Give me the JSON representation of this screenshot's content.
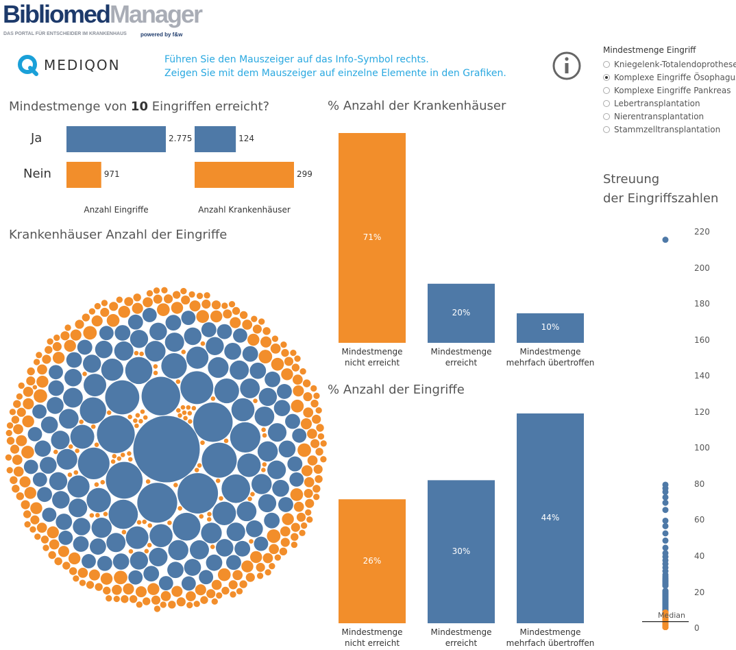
{
  "header": {
    "brand_1": "Bibliomed",
    "brand_2": "Manager",
    "tagline": "DAS PORTAL FÜR ENTSCHEIDER IM KRANKENHAUS",
    "powered": "powered by f&w"
  },
  "partner": "MEDIQON",
  "instructions": [
    "Führen Sie den Mauszeiger auf das Info-Symbol rechts.",
    "Zeigen Sie mit dem Mauszeiger auf einzelne Elemente in den Grafiken."
  ],
  "filter": {
    "title": "Mindestmenge Eingriff",
    "options": [
      "Kniegelenk-Totalendoprothese",
      "Komplexe Eingriffe Ösophagus",
      "Komplexe Eingriffe Pankreas",
      "Lebertransplantation",
      "Nierentransplantation",
      "Stammzelltransplantation"
    ],
    "selected": 1
  },
  "chart_data": [
    {
      "type": "hbar",
      "title_start": "Mindestmenge von",
      "threshold": 10,
      "title_end": "Eingriffen erreicht?",
      "categories": [
        "Ja",
        "Nein"
      ],
      "colors": [
        "#4e79a7",
        "#f28e2b"
      ],
      "series": [
        {
          "name": "Anzahl Eingriffe",
          "values": [
            2775,
            971
          ],
          "value_labels": [
            "2.775",
            "971"
          ]
        },
        {
          "name": "Anzahl Krankenhäuser",
          "values": [
            124,
            299
          ]
        }
      ]
    },
    {
      "type": "bubble",
      "title": "Krankenhäuser Anzahl der Eingriffe",
      "series": [
        {
          "color": "#4e79a7",
          "values": [
            216,
            80,
            78,
            76,
            73,
            70,
            66,
            60,
            57,
            53,
            49,
            45,
            42,
            40,
            38,
            36,
            34,
            32,
            30,
            29,
            28,
            27,
            27,
            26,
            26,
            25,
            25,
            24,
            24,
            24,
            21,
            21,
            21,
            21,
            20,
            20,
            20,
            20,
            19,
            19,
            19,
            19,
            19,
            18,
            18,
            18,
            18,
            18,
            17,
            17,
            17,
            17,
            17,
            17,
            16,
            16,
            16,
            16,
            16,
            16,
            16,
            15,
            15,
            15,
            15,
            15,
            15,
            15,
            14,
            14,
            14,
            14,
            14,
            14,
            14,
            14,
            13,
            13,
            13,
            13,
            13,
            13,
            13,
            13,
            12,
            12,
            12,
            12,
            12,
            12,
            12,
            12,
            12,
            12,
            11,
            11,
            11,
            11,
            11,
            11,
            11,
            11,
            11,
            11,
            11,
            10,
            10,
            10,
            10,
            10,
            10,
            10,
            10,
            10,
            10,
            10,
            10,
            10,
            10,
            10,
            10,
            10,
            10,
            10
          ]
        },
        {
          "color": "#f28e2b",
          "values": [
            9,
            9,
            9,
            9,
            9,
            9,
            8,
            8,
            8,
            8,
            8,
            8,
            8,
            8,
            7,
            7,
            7,
            7,
            7,
            7,
            7,
            7,
            7,
            7,
            7,
            7,
            7,
            7,
            7,
            7,
            7,
            7,
            6,
            6,
            6,
            6,
            6,
            6,
            6,
            6,
            6,
            6,
            6,
            6,
            6,
            6,
            6,
            6,
            6,
            6,
            5,
            5,
            5,
            5,
            5,
            5,
            5,
            5,
            5,
            5,
            5,
            5,
            5,
            5,
            5,
            5,
            5,
            5,
            5,
            5,
            5,
            5,
            5,
            5,
            5,
            4,
            4,
            4,
            4,
            4,
            4,
            4,
            4,
            4,
            4,
            4,
            4,
            4,
            4,
            4,
            4,
            4,
            4,
            4,
            4,
            4,
            4,
            4,
            4,
            4,
            4,
            4,
            4,
            4,
            4,
            4,
            4,
            4,
            4,
            4,
            3,
            3,
            3,
            3,
            3,
            3,
            3,
            3,
            3,
            3,
            3,
            3,
            3,
            3,
            3,
            3,
            3,
            3,
            3,
            3,
            3,
            3,
            3,
            3,
            3,
            3,
            3,
            3,
            3,
            3,
            3,
            3,
            3,
            3,
            3,
            3,
            3,
            3,
            3,
            3,
            2,
            2,
            2,
            2,
            2,
            2,
            2,
            2,
            2,
            2,
            2,
            2,
            2,
            2,
            2,
            2,
            2,
            2,
            2,
            2,
            2,
            2,
            2,
            2,
            2,
            2,
            2,
            2,
            2,
            2,
            2,
            2,
            2,
            2,
            2,
            2,
            2,
            2,
            2,
            2,
            2,
            2,
            2,
            2,
            2,
            2,
            2,
            2,
            2,
            2,
            2,
            2,
            2,
            2,
            2,
            2,
            2,
            2,
            2,
            2,
            2,
            2,
            2,
            2,
            2,
            1,
            1,
            1,
            1,
            1,
            1,
            1,
            1,
            1,
            1,
            1,
            1,
            1,
            1,
            1,
            1,
            1,
            1,
            1,
            1,
            1,
            1,
            1,
            1,
            1,
            1,
            1,
            1,
            1,
            1,
            1,
            1,
            1,
            1,
            1,
            1,
            1,
            1,
            1,
            1,
            1,
            1,
            1,
            1,
            1,
            1,
            1,
            1,
            1,
            1,
            1,
            1,
            1,
            1,
            1,
            1,
            1,
            1,
            1,
            1,
            1,
            1,
            1,
            1,
            1,
            1,
            1,
            1,
            1,
            1,
            1,
            1,
            1,
            1,
            1
          ]
        }
      ]
    },
    {
      "type": "bar",
      "title": "% Anzahl der Krankenhäuser",
      "categories": [
        "Mindestmenge\nnicht erreicht",
        "Mindestmenge\nerreicht",
        "Mindestmenge\nmehrfach übertroffen"
      ],
      "values": [
        71,
        20,
        10
      ],
      "value_labels": [
        "71%",
        "20%",
        "10%"
      ],
      "colors": [
        "#f28e2b",
        "#4e79a7",
        "#4e79a7"
      ]
    },
    {
      "type": "bar",
      "title": "% Anzahl der Eingriffe",
      "categories": [
        "Mindestmenge\nnicht erreicht",
        "Mindestmenge\nerreicht",
        "Mindestmenge\nmehrfach übertroffen"
      ],
      "values": [
        26,
        30,
        44
      ],
      "value_labels": [
        "26%",
        "30%",
        "44%"
      ],
      "colors": [
        "#f28e2b",
        "#4e79a7",
        "#4e79a7"
      ]
    },
    {
      "type": "strip",
      "title": "Streuung\nder Eingriffszahlen",
      "ylim": [
        -3,
        225
      ],
      "yticks": [
        0,
        20,
        40,
        60,
        80,
        100,
        120,
        140,
        160,
        180,
        200,
        220
      ],
      "median": 4,
      "median_label": "Median"
    }
  ]
}
